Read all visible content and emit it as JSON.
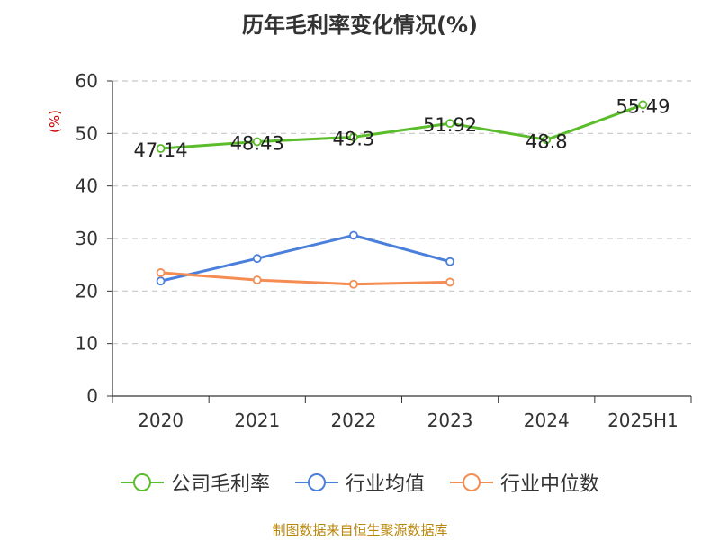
{
  "title": "历年毛利率变化情况(%)",
  "unit": "(%)",
  "source": "制图数据来自恒生聚源数据库",
  "chart_data": {
    "type": "line",
    "categories": [
      "2020",
      "2021",
      "2022",
      "2023",
      "2024",
      "2025H1"
    ],
    "ylim": [
      0,
      60
    ],
    "yticks": [
      0,
      10,
      20,
      30,
      40,
      50,
      60
    ],
    "grid": true,
    "legend_position": "bottom",
    "series": [
      {
        "name": "公司毛利率",
        "color": "#5bbd2b",
        "values": [
          47.14,
          48.43,
          49.3,
          51.92,
          48.8,
          55.49
        ],
        "labels": [
          "47.14",
          "48.43",
          "49.3",
          "51.92",
          "48.8",
          "55.49"
        ]
      },
      {
        "name": "行业均值",
        "color": "#4a7fdc",
        "values": [
          21.9,
          26.2,
          30.6,
          25.6,
          null,
          null
        ]
      },
      {
        "name": "行业中位数",
        "color": "#f58c52",
        "values": [
          23.5,
          22.1,
          21.3,
          21.7,
          null,
          null
        ]
      }
    ]
  }
}
